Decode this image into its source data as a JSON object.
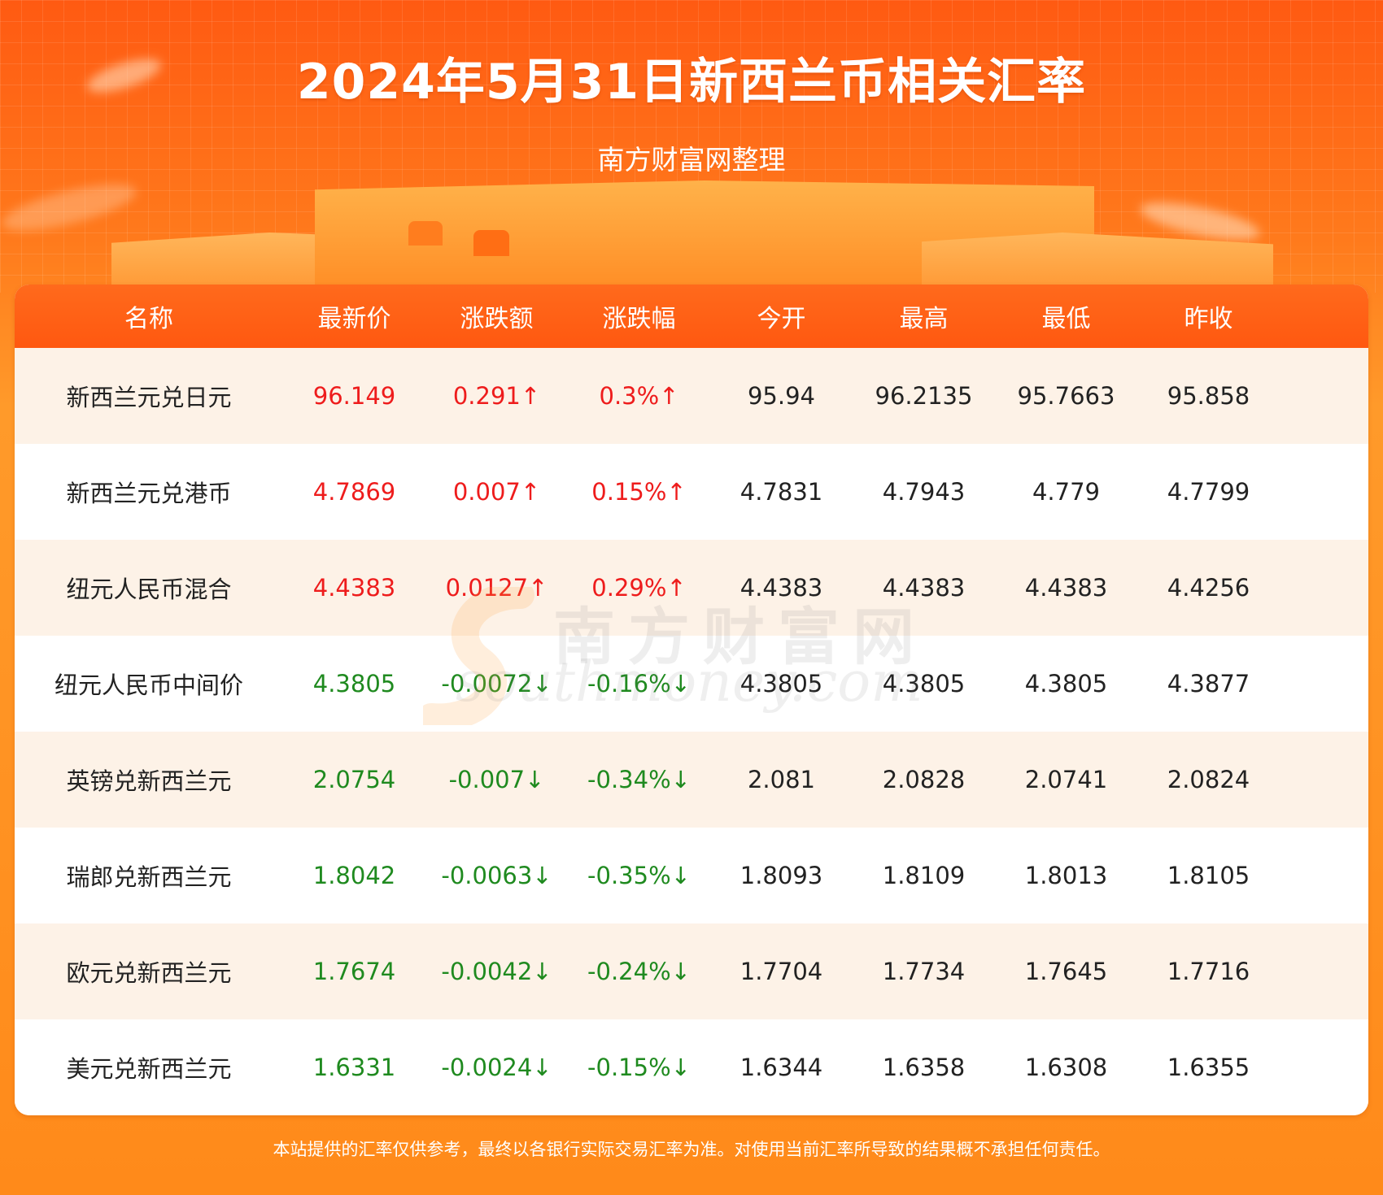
{
  "header": {
    "title": "2024年5月31日新西兰币相关汇率",
    "subtitle": "南方财富网整理"
  },
  "watermark": {
    "cn": "南方财富网",
    "en": "southmoney.com"
  },
  "table": {
    "headers": [
      "名称",
      "最新价",
      "涨跌额",
      "涨跌幅",
      "今开",
      "最高",
      "最低",
      "昨收"
    ],
    "rows": [
      {
        "name": "新西兰元兑日元",
        "price": "96.149",
        "change": "0.291↑",
        "pct": "0.3%↑",
        "open": "95.94",
        "high": "96.2135",
        "low": "95.7663",
        "prev": "95.858",
        "trend": "up"
      },
      {
        "name": "新西兰元兑港币",
        "price": "4.7869",
        "change": "0.007↑",
        "pct": "0.15%↑",
        "open": "4.7831",
        "high": "4.7943",
        "low": "4.779",
        "prev": "4.7799",
        "trend": "up"
      },
      {
        "name": "纽元人民币混合",
        "price": "4.4383",
        "change": "0.0127↑",
        "pct": "0.29%↑",
        "open": "4.4383",
        "high": "4.4383",
        "low": "4.4383",
        "prev": "4.4256",
        "trend": "up"
      },
      {
        "name": "纽元人民币中间价",
        "price": "4.3805",
        "change": "-0.0072↓",
        "pct": "-0.16%↓",
        "open": "4.3805",
        "high": "4.3805",
        "low": "4.3805",
        "prev": "4.3877",
        "trend": "down"
      },
      {
        "name": "英镑兑新西兰元",
        "price": "2.0754",
        "change": "-0.007↓",
        "pct": "-0.34%↓",
        "open": "2.081",
        "high": "2.0828",
        "low": "2.0741",
        "prev": "2.0824",
        "trend": "down"
      },
      {
        "name": "瑞郎兑新西兰元",
        "price": "1.8042",
        "change": "-0.0063↓",
        "pct": "-0.35%↓",
        "open": "1.8093",
        "high": "1.8109",
        "low": "1.8013",
        "prev": "1.8105",
        "trend": "down"
      },
      {
        "name": "欧元兑新西兰元",
        "price": "1.7674",
        "change": "-0.0042↓",
        "pct": "-0.24%↓",
        "open": "1.7704",
        "high": "1.7734",
        "low": "1.7645",
        "prev": "1.7716",
        "trend": "down"
      },
      {
        "name": "美元兑新西兰元",
        "price": "1.6331",
        "change": "-0.0024↓",
        "pct": "-0.15%↓",
        "open": "1.6344",
        "high": "1.6358",
        "low": "1.6308",
        "prev": "1.6355",
        "trend": "down"
      }
    ]
  },
  "footer": {
    "disclaimer": "本站提供的汇率仅供参考，最终以各银行实际交易汇率为准。对使用当前汇率所导致的结果概不承担任何责任。"
  },
  "colors": {
    "up": "#ee1c1c",
    "down": "#1f8a1f",
    "header_bg": "#ff5a12",
    "row_alt": "#fdf2e7"
  }
}
